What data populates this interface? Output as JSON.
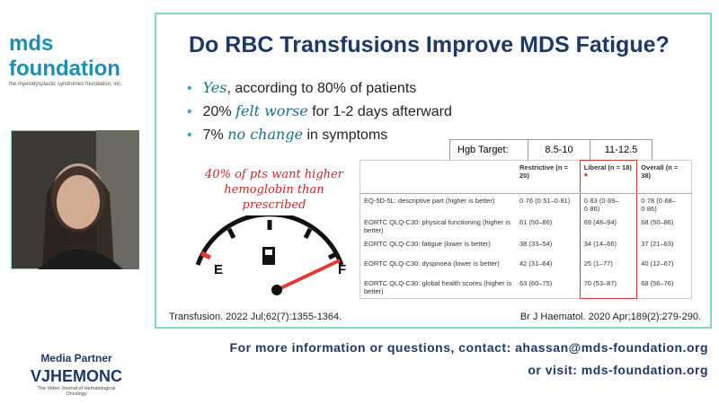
{
  "logo": {
    "name": "mds foundation",
    "tagline": "the myelodysplastic syndromes foundation, inc."
  },
  "slide": {
    "title": "Do RBC Transfusions Improve MDS Fatigue?",
    "bullets": [
      {
        "parts": [
          "Yes",
          ", according to 80% of patients"
        ]
      },
      {
        "parts": [
          "20% ",
          "felt worse",
          " for 1-2 days afterward"
        ]
      },
      {
        "parts": [
          "7% ",
          "no change",
          " in symptoms"
        ]
      }
    ],
    "annotation": "40% of pts want higher hemoglobin than prescribed",
    "gauge": {
      "empty": "E",
      "full": "F"
    },
    "citation_left": "Transfusion. 2022 Jul;62(7):1355-1364.",
    "citation_right": "Br J Haematol. 2020 Apr;189(2):279-290.",
    "hgb_row": [
      "Hgb Target:",
      "8.5-10",
      "11-12.5"
    ],
    "table": {
      "header": [
        "Restrictive (n = 20)",
        "Liberal (n = 18)",
        "Overall (n = 38)"
      ],
      "marker": "*",
      "rows": [
        [
          "EQ-5D-5L: descriptive part (higher is better)",
          "0·76 (0·51–0·81)",
          "0·83 (0·69–0·86)",
          "0·78 (0·68–0·86)"
        ],
        [
          "EORTC QLQ-C30: physical functioning (higher is better)",
          "61 (50–86)",
          "69 (48–94)",
          "68 (50–86)"
        ],
        [
          "EORTC QLQ-C30: fatigue (lower is better)",
          "38 (33–54)",
          "34 (14–66)",
          "37 (21–63)"
        ],
        [
          "EORTC QLQ-C30: dyspnoea (lower is better)",
          "42 (31–64)",
          "25 (1–77)",
          "40 (12–67)"
        ],
        [
          "EORTC QLQ-C30: global health scores (higher is better)",
          "63 (60–75)",
          "70 (53–87)",
          "68 (56–76)"
        ]
      ]
    }
  },
  "footer": {
    "contact": "For more information or questions,  contact: ahassan@mds-foundation.org",
    "visit": "or visit:  mds-foundation.org",
    "partner_label": "Media Partner",
    "partner_name": "VJHEMONC",
    "partner_tagline": "The Video Journal of Hematological Oncology"
  }
}
